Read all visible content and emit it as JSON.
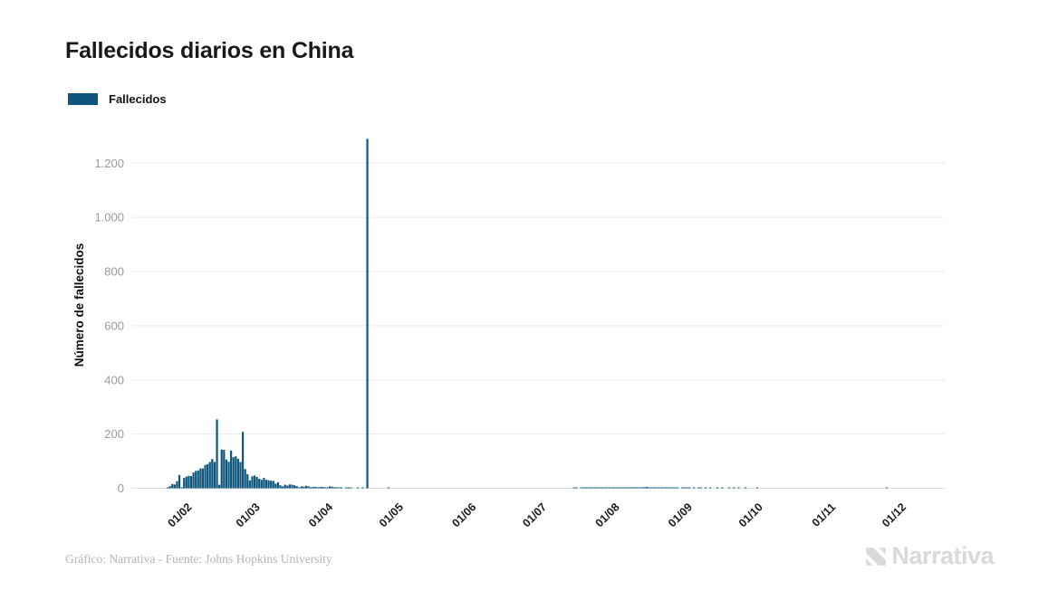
{
  "chart": {
    "title": "Fallecidos diarios en China",
    "legend_label": "Fallecidos",
    "ylabel": "Número de fallecidos"
  },
  "footer": {
    "credit": "Gráfico: Narrativa - Fuente: Johns Hopkins University",
    "logo_text": "Narrativa"
  },
  "colors": {
    "bar": "#0e567e",
    "grid": "#ececec",
    "axis_line": "#d8dde0",
    "y_tick_text": "#9b9b9b",
    "x_tick_text": "#1a1a1a",
    "axis_title_text": "#111111",
    "title_text": "#191919",
    "credit_text": "#b3b3b3",
    "logo_gray": "#d9d9d9"
  },
  "chart_data": {
    "type": "bar",
    "title": "Fallecidos diarios en China",
    "xlabel": "",
    "ylabel": "Número de fallecidos",
    "legend": [
      "Fallecidos"
    ],
    "legend_position": "top-left",
    "grid": true,
    "ylim": [
      0,
      1300
    ],
    "y_ticks": [
      0,
      200,
      400,
      600,
      800,
      1000,
      1200
    ],
    "y_tick_labels": [
      "0",
      "200",
      "400",
      "600",
      "800",
      "1.000",
      "1.200"
    ],
    "x_tick_labels": [
      "01/02",
      "01/03",
      "01/04",
      "01/05",
      "01/06",
      "01/07",
      "01/08",
      "01/09",
      "01/10",
      "01/11",
      "01/12"
    ],
    "x_tick_format": "day/month (2020)",
    "peak_value": 1290,
    "peak_date": "2020-04-17",
    "series": [
      {
        "name": "Fallecidos",
        "start_date": "2020-01-23",
        "end_date": "2020-12-07",
        "daily_values": [
          1,
          8,
          16,
          14,
          26,
          49,
          2,
          38,
          43,
          46,
          45,
          58,
          64,
          66,
          73,
          73,
          86,
          89,
          97,
          108,
          97,
          254,
          13,
          143,
          142,
          106,
          98,
          139,
          115,
          118,
          109,
          97,
          208,
          71,
          52,
          29,
          44,
          47,
          42,
          35,
          31,
          38,
          31,
          30,
          28,
          27,
          17,
          22,
          11,
          7,
          13,
          10,
          14,
          13,
          11,
          8,
          3,
          7,
          6,
          9,
          7,
          4,
          5,
          5,
          3,
          5,
          5,
          2,
          1,
          7,
          6,
          4,
          1,
          3,
          2,
          0,
          2,
          1,
          1,
          0,
          0,
          1,
          0,
          1,
          0,
          1290,
          0,
          0,
          0,
          0,
          0,
          0,
          0,
          0,
          1,
          0,
          0,
          0,
          0,
          0,
          0,
          0,
          0,
          0,
          0,
          0,
          0,
          0,
          0,
          0,
          0,
          0,
          0,
          0,
          0,
          0,
          0,
          0,
          0,
          0,
          0,
          0,
          0,
          0,
          0,
          0,
          0,
          0,
          0,
          0,
          0,
          0,
          0,
          0,
          0,
          0,
          0,
          0,
          0,
          0,
          0,
          0,
          0,
          0,
          0,
          0,
          0,
          0,
          0,
          0,
          0,
          0,
          0,
          0,
          0,
          0,
          0,
          0,
          0,
          0,
          0,
          0,
          0,
          0,
          0,
          0,
          0,
          0,
          0,
          0,
          0,
          0,
          0,
          1,
          1,
          0,
          1,
          1,
          1,
          1,
          2,
          2,
          2,
          1,
          2,
          1,
          2,
          3,
          2,
          3,
          3,
          3,
          2,
          3,
          2,
          2,
          2,
          3,
          4,
          2,
          3,
          2,
          3,
          4,
          5,
          3,
          2,
          2,
          3,
          2,
          2,
          1,
          2,
          1,
          2,
          1,
          1,
          1,
          0,
          1,
          1,
          1,
          1,
          0,
          1,
          0,
          1,
          1,
          0,
          1,
          0,
          1,
          0,
          0,
          1,
          0,
          1,
          0,
          0,
          1,
          0,
          1,
          0,
          1,
          0,
          0,
          1,
          0,
          0,
          0,
          0,
          1,
          0,
          0,
          0,
          0,
          0,
          0,
          0,
          0,
          0,
          0,
          0,
          0,
          0,
          0,
          0,
          0,
          0,
          0,
          0,
          0,
          0,
          0,
          0,
          0,
          0,
          0,
          0,
          0,
          0,
          0,
          0,
          0,
          0,
          0,
          0,
          0,
          0,
          0,
          0,
          0,
          0,
          0,
          0,
          0,
          0,
          0,
          0,
          0,
          0,
          0,
          0,
          0,
          0,
          0,
          1,
          0,
          0,
          0,
          0,
          0,
          0,
          0,
          0,
          0,
          0,
          0,
          0,
          0
        ]
      }
    ]
  }
}
